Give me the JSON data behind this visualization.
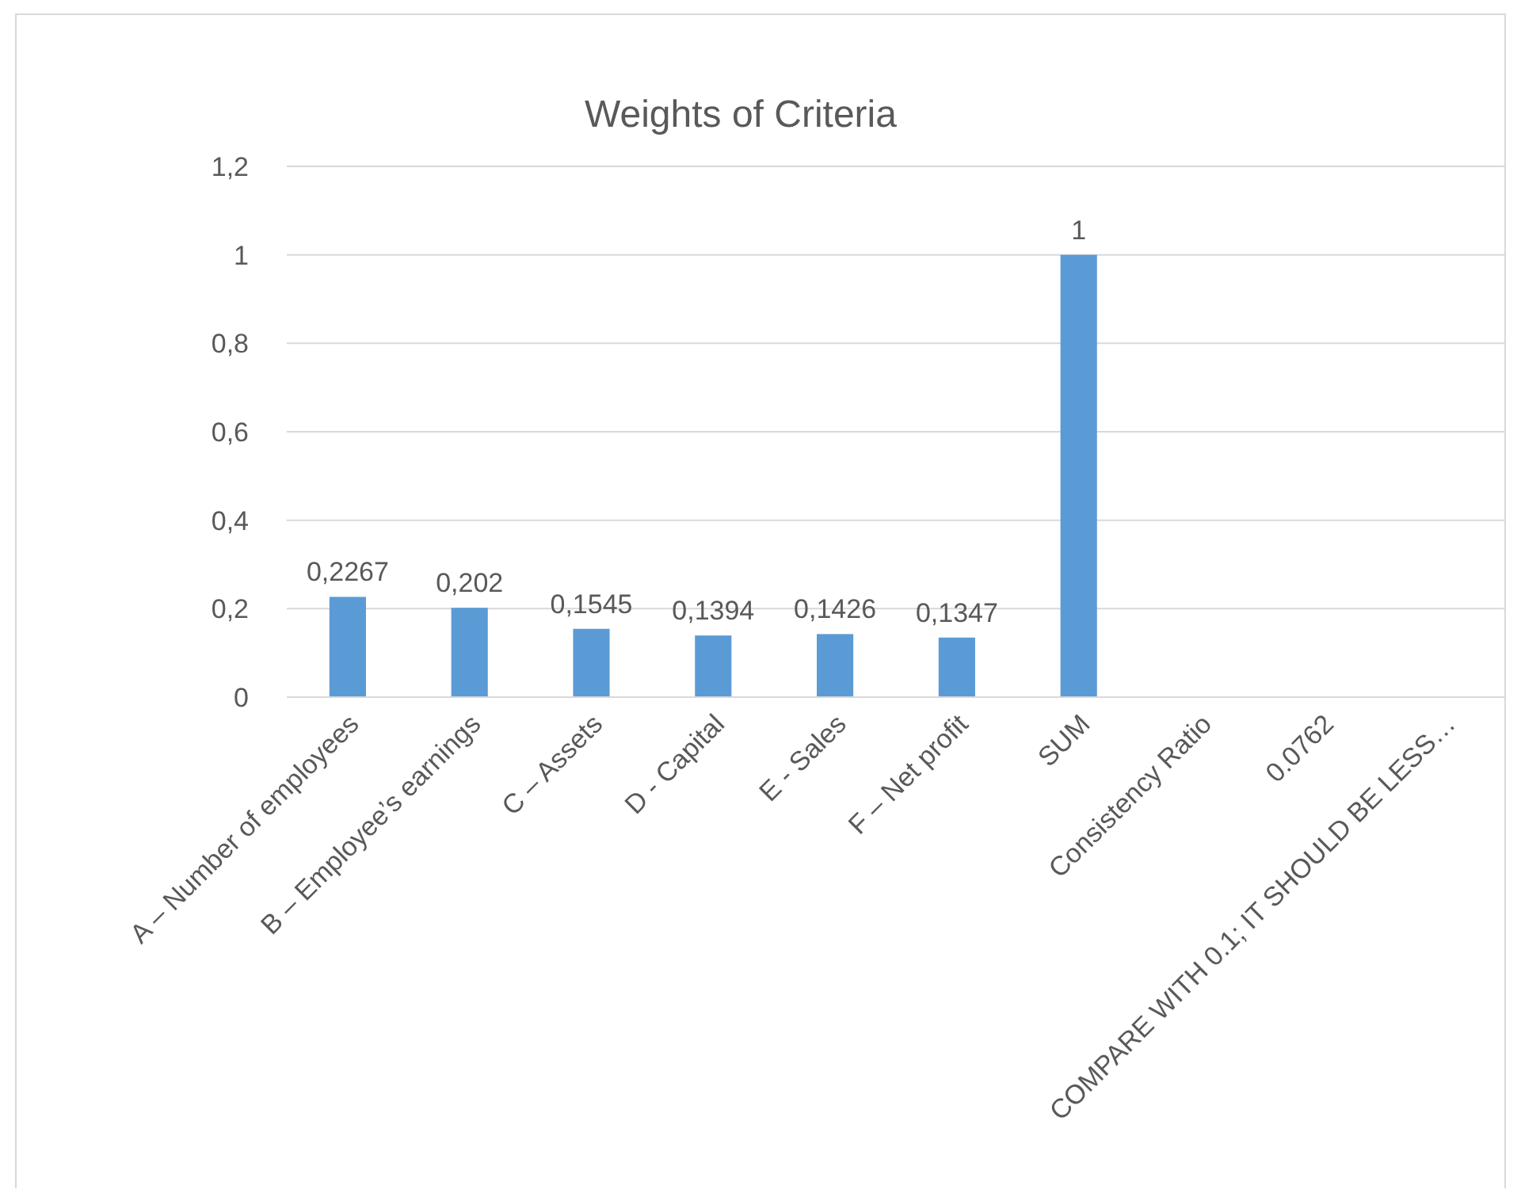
{
  "chart_data": {
    "type": "bar",
    "title": "Weights of Criteria",
    "categories": [
      "A – Number of employees",
      "B – Employee’s earnings",
      "C – Assets",
      "D - Capital",
      "E - Sales",
      "F – Net profit",
      "SUM",
      "Consistency Ratio",
      "0.0762",
      "COMPARE WITH 0.1; IT SHOULD BE LESS…"
    ],
    "values": [
      0.2267,
      0.202,
      0.1545,
      0.1394,
      0.1426,
      0.1347,
      1,
      null,
      null,
      null
    ],
    "value_labels": [
      "0,2267",
      "0,202",
      "0,1545",
      "0,1394",
      "0,1426",
      "0,1347",
      "1",
      null,
      null,
      null
    ],
    "color": "#5b9bd5",
    "ylim": [
      0,
      1.2
    ],
    "yticks": [
      {
        "value": 0,
        "label": "0"
      },
      {
        "value": 0.2,
        "label": "0,2"
      },
      {
        "value": 0.4,
        "label": "0,4"
      },
      {
        "value": 0.6,
        "label": "0,6"
      },
      {
        "value": 0.8,
        "label": "0,8"
      },
      {
        "value": 1,
        "label": "1"
      },
      {
        "value": 1.2,
        "label": "1,2"
      }
    ],
    "grid": "y"
  }
}
